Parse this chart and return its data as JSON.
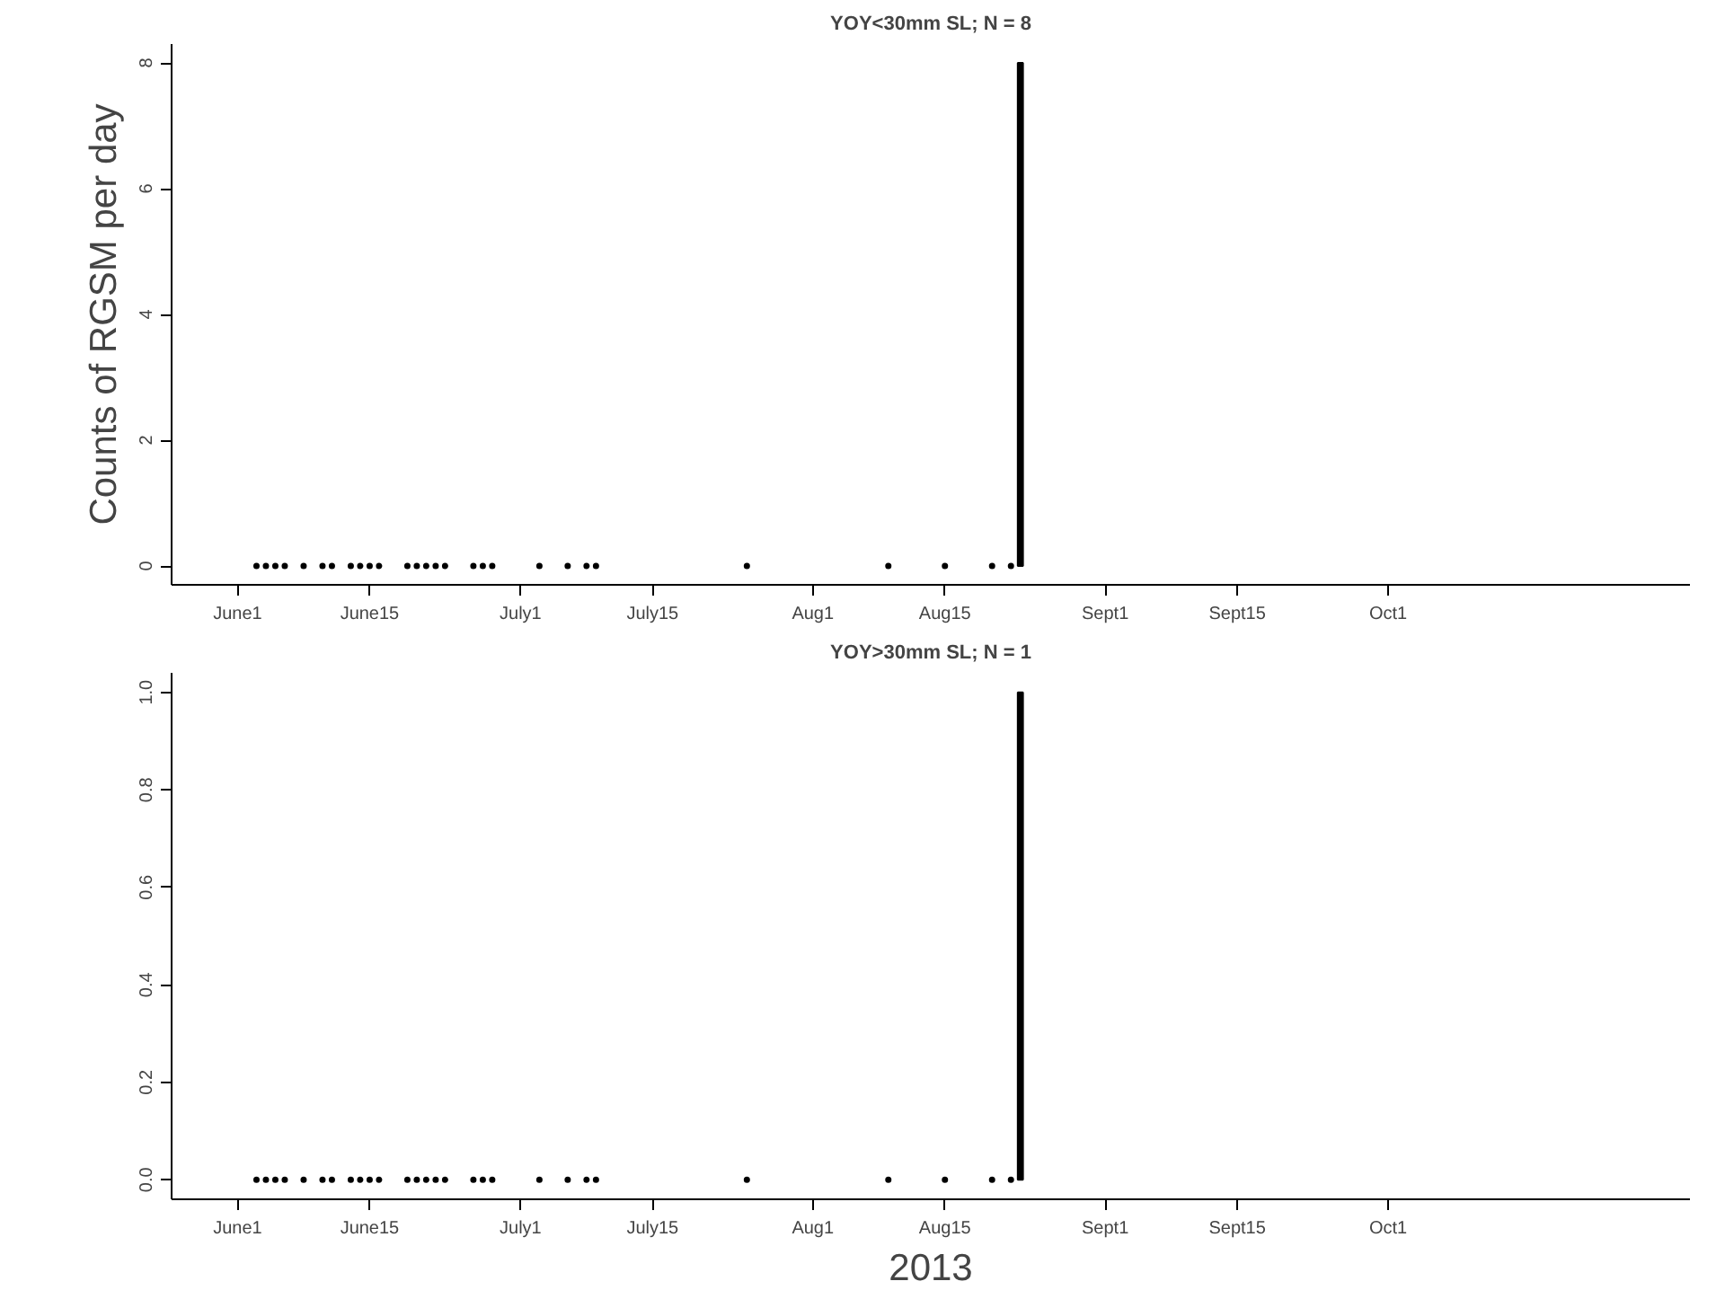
{
  "chart_data": [
    {
      "type": "scatter",
      "title": "YOY<30mm SL; N = 8",
      "ylabel": "Counts of RGSM per day",
      "xlim": [
        "2013-05-25",
        "2013-11-02"
      ],
      "xticks": [
        {
          "value": "2013-06-01",
          "label": "June1"
        },
        {
          "value": "2013-06-15",
          "label": "June15"
        },
        {
          "value": "2013-07-01",
          "label": "July1"
        },
        {
          "value": "2013-07-15",
          "label": "July15"
        },
        {
          "value": "2013-08-01",
          "label": "Aug1"
        },
        {
          "value": "2013-08-15",
          "label": "Aug15"
        },
        {
          "value": "2013-09-01",
          "label": "Sept1"
        },
        {
          "value": "2013-09-15",
          "label": "Sept15"
        },
        {
          "value": "2013-10-01",
          "label": "Oct1"
        }
      ],
      "ylim": [
        -0.3,
        8.3
      ],
      "yticks": [
        0,
        2,
        4,
        6,
        8
      ],
      "grid": false,
      "marker": "circle",
      "series": [
        {
          "color": "#000000",
          "x": [
            "2013-06-03",
            "2013-06-04",
            "2013-06-05",
            "2013-06-06",
            "2013-06-08",
            "2013-06-10",
            "2013-06-11",
            "2013-06-13",
            "2013-06-14",
            "2013-06-15",
            "2013-06-16",
            "2013-06-19",
            "2013-06-20",
            "2013-06-21",
            "2013-06-22",
            "2013-06-23",
            "2013-06-26",
            "2013-06-27",
            "2013-06-28",
            "2013-07-03",
            "2013-07-06",
            "2013-07-08",
            "2013-07-09",
            "2013-07-25",
            "2013-08-09",
            "2013-08-15",
            "2013-08-20",
            "2013-08-22"
          ],
          "values": [
            0,
            0,
            0,
            0,
            0,
            0,
            0,
            0,
            0,
            0,
            0,
            0,
            0,
            0,
            0,
            0,
            0,
            0,
            0,
            0,
            0,
            0,
            0,
            0,
            0,
            0,
            0,
            0
          ]
        },
        {
          "type": "bar",
          "color": "#000000",
          "x": [
            "2013-08-23"
          ],
          "values": [
            8
          ]
        }
      ]
    },
    {
      "type": "scatter",
      "title": "YOY>30mm SL; N = 1",
      "xlabel": "2013",
      "xlim": [
        "2013-05-25",
        "2013-11-02"
      ],
      "xticks": [
        {
          "value": "2013-06-01",
          "label": "June1"
        },
        {
          "value": "2013-06-15",
          "label": "June15"
        },
        {
          "value": "2013-07-01",
          "label": "July1"
        },
        {
          "value": "2013-07-15",
          "label": "July15"
        },
        {
          "value": "2013-08-01",
          "label": "Aug1"
        },
        {
          "value": "2013-08-15",
          "label": "Aug15"
        },
        {
          "value": "2013-09-01",
          "label": "Sept1"
        },
        {
          "value": "2013-09-15",
          "label": "Sept15"
        },
        {
          "value": "2013-10-01",
          "label": "Oct1"
        }
      ],
      "ylim": [
        -0.04,
        1.04
      ],
      "yticks": [
        {
          "value": 0,
          "label": "0.0"
        },
        0.2,
        0.4,
        0.6,
        0.8,
        {
          "value": 1,
          "label": "1.0"
        }
      ],
      "grid": false,
      "marker": "circle",
      "series": [
        {
          "color": "#000000",
          "x": [
            "2013-06-03",
            "2013-06-04",
            "2013-06-05",
            "2013-06-06",
            "2013-06-08",
            "2013-06-10",
            "2013-06-11",
            "2013-06-13",
            "2013-06-14",
            "2013-06-15",
            "2013-06-16",
            "2013-06-19",
            "2013-06-20",
            "2013-06-21",
            "2013-06-22",
            "2013-06-23",
            "2013-06-26",
            "2013-06-27",
            "2013-06-28",
            "2013-07-03",
            "2013-07-06",
            "2013-07-08",
            "2013-07-09",
            "2013-07-25",
            "2013-08-09",
            "2013-08-15",
            "2013-08-20",
            "2013-08-22"
          ],
          "values": [
            0,
            0,
            0,
            0,
            0,
            0,
            0,
            0,
            0,
            0,
            0,
            0,
            0,
            0,
            0,
            0,
            0,
            0,
            0,
            0,
            0,
            0,
            0,
            0,
            0,
            0,
            0,
            0
          ]
        },
        {
          "type": "bar",
          "color": "#000000",
          "x": [
            "2013-08-23"
          ],
          "values": [
            1
          ]
        }
      ]
    }
  ]
}
